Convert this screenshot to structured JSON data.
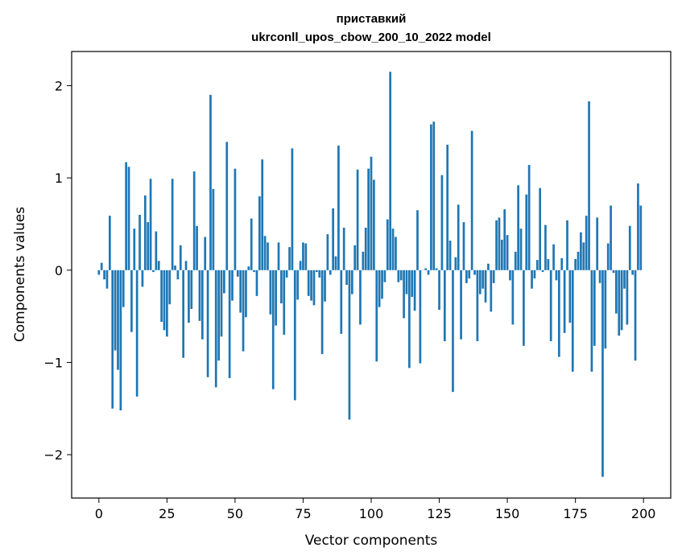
{
  "chart_data": {
    "type": "bar",
    "title": "приставкий",
    "subtitle": "ukrconll_upos_cbow_200_10_2022 model",
    "xlabel": "Vector components",
    "ylabel": "Components values",
    "xlim": [
      -10,
      210
    ],
    "ylim": [
      -2.47,
      2.37
    ],
    "xticks": [
      0,
      25,
      50,
      75,
      100,
      125,
      150,
      175,
      200
    ],
    "yticks": [
      -2,
      -1,
      0,
      1,
      2
    ],
    "ytick_labels": [
      "−2",
      "−1",
      "0",
      "1",
      "2"
    ],
    "grid": false,
    "bar_color": "#1f77b4",
    "values": [
      -0.05,
      0.08,
      -0.1,
      -0.2,
      0.59,
      -1.5,
      -0.87,
      -1.08,
      -1.52,
      -0.4,
      1.17,
      1.12,
      -0.67,
      0.45,
      -1.37,
      0.6,
      -0.18,
      0.81,
      0.52,
      0.99,
      -0.02,
      0.42,
      0.1,
      -0.56,
      -0.65,
      -0.72,
      -0.37,
      0.99,
      0.05,
      -0.1,
      0.27,
      -0.95,
      0.1,
      -0.57,
      -0.42,
      1.07,
      0.48,
      -0.55,
      -0.75,
      0.36,
      -1.16,
      1.9,
      0.88,
      -1.27,
      -0.98,
      -0.72,
      -0.25,
      1.39,
      -1.17,
      -0.33,
      1.1,
      -0.07,
      -0.46,
      -0.88,
      -0.51,
      0.04,
      0.56,
      -0.02,
      -0.28,
      0.8,
      1.2,
      0.37,
      0.3,
      -0.48,
      -1.29,
      -0.6,
      0.3,
      -0.36,
      -0.7,
      -0.08,
      0.25,
      1.32,
      -1.41,
      -0.32,
      0.1,
      0.3,
      0.29,
      -0.28,
      -0.33,
      -0.38,
      -0.02,
      -0.08,
      -0.91,
      -0.34,
      0.39,
      -0.05,
      0.67,
      0.15,
      1.35,
      -0.69,
      0.46,
      -0.16,
      -1.62,
      -0.26,
      0.27,
      1.09,
      -0.59,
      0.2,
      0.46,
      1.1,
      1.23,
      0.98,
      -0.99,
      -0.4,
      -0.31,
      -0.13,
      0.55,
      2.15,
      0.45,
      0.36,
      -0.13,
      -0.11,
      -0.52,
      -0.26,
      -1.06,
      -0.29,
      -0.44,
      0.65,
      -1.01,
      0.0,
      0.02,
      -0.05,
      1.58,
      1.61,
      0.02,
      -0.43,
      1.03,
      -0.77,
      1.36,
      0.32,
      -1.32,
      0.14,
      0.71,
      -0.75,
      0.52,
      -0.14,
      -0.09,
      1.51,
      -0.05,
      -0.77,
      -0.26,
      -0.2,
      -0.35,
      0.07,
      -0.45,
      -0.14,
      0.54,
      0.57,
      0.33,
      0.66,
      0.38,
      -0.11,
      -0.59,
      0.2,
      0.92,
      0.45,
      -0.82,
      0.82,
      1.14,
      -0.2,
      -0.09,
      0.11,
      0.89,
      -0.02,
      0.49,
      0.12,
      -0.77,
      0.28,
      -0.11,
      -0.94,
      0.13,
      -0.68,
      0.54,
      -0.57,
      -1.1,
      0.12,
      0.2,
      0.41,
      0.3,
      0.59,
      1.83,
      -1.1,
      -0.82,
      0.57,
      -0.14,
      -2.24,
      -0.85,
      0.29,
      0.7,
      -0.03,
      -0.47,
      -0.71,
      -0.65,
      -0.2,
      -0.59,
      0.48,
      -0.05,
      -0.98,
      0.94,
      0.7
    ]
  }
}
